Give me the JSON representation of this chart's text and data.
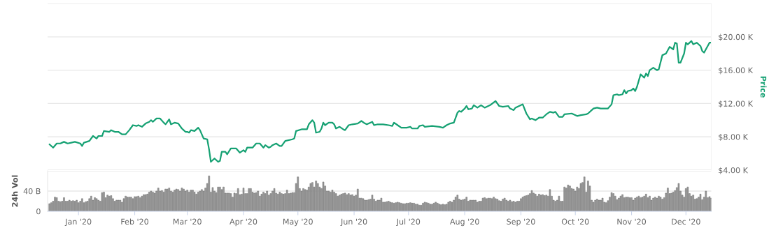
{
  "chart_data": [
    {
      "type": "line",
      "y2label": "Price",
      "tick_labels": "y",
      "grid": "y",
      "xlim": [
        "2019-12-15",
        "2020-12-15"
      ],
      "y2lim": [
        4000,
        24000
      ],
      "y2ticks": [
        {
          "value": 4000,
          "label": "$4.00 K"
        },
        {
          "value": 8000,
          "label": "$8.00 K"
        },
        {
          "value": 12000,
          "label": "$12.00 K"
        },
        {
          "value": 16000,
          "label": "$16.00 K"
        },
        {
          "value": 20000,
          "label": "$20.00 K"
        },
        {
          "value": 24000,
          "label": null
        }
      ],
      "series": [
        {
          "color": "#16a173",
          "axis": "y2",
          "x": [
            "2019-12-16",
            "2019-12-18",
            "2019-12-20",
            "2019-12-22",
            "2019-12-24",
            "2019-12-26",
            "2019-12-28",
            "2019-12-30",
            "2020-01-02",
            "2020-01-03",
            "2020-01-04",
            "2020-01-07",
            "2020-01-09",
            "2020-01-11",
            "2020-01-12",
            "2020-01-14",
            "2020-01-15",
            "2020-01-18",
            "2020-01-19",
            "2020-01-21",
            "2020-01-23",
            "2020-01-25",
            "2020-01-27",
            "2020-01-29",
            "2020-01-31",
            "2020-02-02",
            "2020-02-03",
            "2020-02-05",
            "2020-02-07",
            "2020-02-09",
            "2020-02-10",
            "2020-02-11",
            "2020-02-13",
            "2020-02-15",
            "2020-02-17",
            "2020-02-18",
            "2020-02-20",
            "2020-02-21",
            "2020-02-23",
            "2020-02-25",
            "2020-02-27",
            "2020-02-28",
            "2020-02-29",
            "2020-03-01",
            "2020-03-02",
            "2020-03-03",
            "2020-03-05",
            "2020-03-07",
            "2020-03-08",
            "2020-03-10",
            "2020-03-12",
            "2020-03-13",
            "2020-03-14",
            "2020-03-16",
            "2020-03-18",
            "2020-03-19",
            "2020-03-20",
            "2020-03-22",
            "2020-03-23",
            "2020-03-25",
            "2020-03-28",
            "2020-03-30",
            "2020-04-01",
            "2020-04-02",
            "2020-04-03",
            "2020-04-06",
            "2020-04-08",
            "2020-04-10",
            "2020-04-12",
            "2020-04-13",
            "2020-04-15",
            "2020-04-16",
            "2020-04-17",
            "2020-04-19",
            "2020-04-21",
            "2020-04-22",
            "2020-04-24",
            "2020-04-28",
            "2020-04-29",
            "2020-04-30",
            "2020-05-03",
            "2020-05-06",
            "2020-05-07",
            "2020-05-09",
            "2020-05-10",
            "2020-05-11",
            "2020-05-13",
            "2020-05-14",
            "2020-05-15",
            "2020-05-16",
            "2020-05-18",
            "2020-05-20",
            "2020-05-21",
            "2020-05-22",
            "2020-05-24",
            "2020-05-26",
            "2020-05-27",
            "2020-05-29",
            "2020-05-31",
            "2020-06-03",
            "2020-06-05",
            "2020-06-07",
            "2020-06-08",
            "2020-06-11",
            "2020-06-12",
            "2020-06-14",
            "2020-06-17",
            "2020-06-20",
            "2020-06-22",
            "2020-06-23",
            "2020-06-25",
            "2020-06-27",
            "2020-06-30",
            "2020-07-02",
            "2020-07-03",
            "2020-07-06",
            "2020-07-07",
            "2020-07-09",
            "2020-07-10",
            "2020-07-14",
            "2020-07-18",
            "2020-07-20",
            "2020-07-22",
            "2020-07-24",
            "2020-07-26",
            "2020-07-28",
            "2020-07-29",
            "2020-07-30",
            "2020-08-01",
            "2020-08-02",
            "2020-08-03",
            "2020-08-05",
            "2020-08-06",
            "2020-08-08",
            "2020-08-10",
            "2020-08-12",
            "2020-08-15",
            "2020-08-18",
            "2020-08-20",
            "2020-08-22",
            "2020-08-25",
            "2020-08-26",
            "2020-08-28",
            "2020-08-29",
            "2020-09-02",
            "2020-09-04",
            "2020-09-06",
            "2020-09-07",
            "2020-09-09",
            "2020-09-11",
            "2020-09-13",
            "2020-09-15",
            "2020-09-17",
            "2020-09-19",
            "2020-09-20",
            "2020-09-22",
            "2020-09-24",
            "2020-09-25",
            "2020-09-29",
            "2020-10-02",
            "2020-10-04",
            "2020-10-07",
            "2020-10-08",
            "2020-10-11",
            "2020-10-13",
            "2020-10-15",
            "2020-10-17",
            "2020-10-19",
            "2020-10-21",
            "2020-10-22",
            "2020-10-24",
            "2020-10-25",
            "2020-10-27",
            "2020-10-28",
            "2020-10-29",
            "2020-10-30",
            "2020-11-01",
            "2020-11-02",
            "2020-11-03",
            "2020-11-04",
            "2020-11-06",
            "2020-11-08",
            "2020-11-09",
            "2020-11-10",
            "2020-11-11",
            "2020-11-13",
            "2020-11-15",
            "2020-11-16",
            "2020-11-18",
            "2020-11-20",
            "2020-11-22",
            "2020-11-24",
            "2020-11-25",
            "2020-11-26",
            "2020-11-27",
            "2020-11-28",
            "2020-11-30",
            "2020-12-01",
            "2020-12-02",
            "2020-12-04",
            "2020-12-05",
            "2020-12-07",
            "2020-12-09",
            "2020-12-10",
            "2020-12-11",
            "2020-12-14",
            "2020-12-15"
          ],
          "values": [
            7100,
            6700,
            7200,
            7200,
            7400,
            7200,
            7300,
            7400,
            7200,
            6900,
            7300,
            7500,
            8100,
            7800,
            8100,
            8100,
            8700,
            8600,
            8800,
            8600,
            8600,
            8300,
            8300,
            8800,
            9400,
            9300,
            9400,
            9200,
            9600,
            9800,
            10000,
            9800,
            10200,
            10200,
            9700,
            9500,
            10100,
            9500,
            9700,
            9600,
            9000,
            8800,
            8600,
            8600,
            8500,
            8800,
            8700,
            9100,
            8800,
            7800,
            7700,
            6500,
            5000,
            5400,
            5000,
            5100,
            6200,
            6200,
            5900,
            6600,
            6600,
            6100,
            6400,
            6200,
            6700,
            6700,
            7200,
            7200,
            6700,
            7000,
            6700,
            6800,
            7000,
            7200,
            6900,
            6900,
            7500,
            7700,
            7800,
            8700,
            8900,
            8900,
            9500,
            10000,
            9700,
            8500,
            8600,
            9000,
            9700,
            9400,
            9700,
            9700,
            9500,
            9000,
            9200,
            8900,
            8800,
            9400,
            9500,
            9600,
            9900,
            9600,
            9500,
            9800,
            9400,
            9500,
            9500,
            9400,
            9300,
            9700,
            9400,
            9100,
            9100,
            9200,
            9000,
            9000,
            9300,
            9400,
            9200,
            9300,
            9200,
            9100,
            9400,
            9600,
            9700,
            10900,
            11100,
            11000,
            11400,
            11700,
            11300,
            11400,
            11800,
            11500,
            11800,
            11500,
            11800,
            12300,
            11700,
            11600,
            11700,
            11400,
            11200,
            11500,
            11900,
            10800,
            10100,
            10200,
            10000,
            10300,
            10300,
            10700,
            11000,
            10900,
            11000,
            10400,
            10400,
            10700,
            10800,
            10500,
            10600,
            10700,
            10800,
            11400,
            11500,
            11400,
            11400,
            11400,
            11900,
            13000,
            13100,
            13000,
            13100,
            13600,
            13200,
            13500,
            13600,
            13800,
            13500,
            14000,
            15500,
            15100,
            15600,
            15300,
            16000,
            16300,
            16000,
            16100,
            17800,
            18000,
            18800,
            18500,
            19300,
            19200,
            16900,
            16900,
            18000,
            19300,
            19100,
            19500,
            19100,
            19300,
            18900,
            18300,
            18100,
            19300,
            19300
          ]
        }
      ]
    },
    {
      "type": "bar",
      "ylabel": "24h Vol",
      "grid": "y",
      "xlim": [
        "2019-12-15",
        "2020-12-15"
      ],
      "xticks": [
        {
          "value": "2020-01-01",
          "label": "Jan '20"
        },
        {
          "value": "2020-02-01",
          "label": "Feb '20"
        },
        {
          "value": "2020-03-01",
          "label": "Mar '20"
        },
        {
          "value": "2020-04-01",
          "label": "Apr '20"
        },
        {
          "value": "2020-05-01",
          "label": "May '20"
        },
        {
          "value": "2020-06-01",
          "label": "Jun '20"
        },
        {
          "value": "2020-07-01",
          "label": "Jul '20"
        },
        {
          "value": "2020-08-01",
          "label": "Aug '20"
        },
        {
          "value": "2020-09-01",
          "label": "Sep '20"
        },
        {
          "value": "2020-10-01",
          "label": "Oct '20"
        },
        {
          "value": "2020-11-01",
          "label": "Nov '20"
        },
        {
          "value": "2020-12-01",
          "label": "Dec '20"
        }
      ],
      "ylim": [
        0,
        80
      ],
      "yticks": [
        0,
        {
          "value": 40,
          "label": "40 B"
        },
        {
          "value": 80,
          "label": null
        }
      ],
      "series": [
        {
          "color": "#999999",
          "x": [
            "2019-12-16",
            "2019-12-17",
            "2019-12-18",
            "2019-12-19",
            "2019-12-20",
            "2019-12-21",
            "2019-12-22",
            "2019-12-23",
            "2019-12-24",
            "2019-12-25",
            "2019-12-26",
            "2019-12-27",
            "2019-12-28",
            "2019-12-29",
            "2019-12-30",
            "2019-12-31",
            "2020-01-01",
            "2020-01-02",
            "2020-01-03",
            "2020-01-04",
            "2020-01-05",
            "2020-01-06",
            "2020-01-07",
            "2020-01-08",
            "2020-01-09",
            "2020-01-10",
            "2020-01-11",
            "2020-01-12",
            "2020-01-13",
            "2020-01-14",
            "2020-01-15",
            "2020-01-16",
            "2020-01-17",
            "2020-01-18",
            "2020-01-19",
            "2020-01-20",
            "2020-01-21",
            "2020-01-22",
            "2020-01-23",
            "2020-01-24",
            "2020-01-25",
            "2020-01-26",
            "2020-01-27",
            "2020-01-28",
            "2020-01-29",
            "2020-01-30",
            "2020-01-31",
            "2020-02-01",
            "2020-02-02",
            "2020-02-03",
            "2020-02-04",
            "2020-02-05",
            "2020-02-06",
            "2020-02-07",
            "2020-02-08",
            "2020-02-09",
            "2020-02-10",
            "2020-02-11",
            "2020-02-12",
            "2020-02-13",
            "2020-02-14",
            "2020-02-15",
            "2020-02-16",
            "2020-02-17",
            "2020-02-18",
            "2020-02-19",
            "2020-02-20",
            "2020-02-21",
            "2020-02-22",
            "2020-02-23",
            "2020-02-24",
            "2020-02-25",
            "2020-02-26",
            "2020-02-27",
            "2020-02-28",
            "2020-02-29",
            "2020-03-01",
            "2020-03-02",
            "2020-03-03",
            "2020-03-04",
            "2020-03-05",
            "2020-03-06",
            "2020-03-07",
            "2020-03-08",
            "2020-03-09",
            "2020-03-10",
            "2020-03-11",
            "2020-03-12",
            "2020-03-13",
            "2020-03-14",
            "2020-03-15",
            "2020-03-16",
            "2020-03-17",
            "2020-03-18",
            "2020-03-19",
            "2020-03-20",
            "2020-03-21",
            "2020-03-22",
            "2020-03-23",
            "2020-03-24",
            "2020-03-25",
            "2020-03-26",
            "2020-03-27",
            "2020-03-28",
            "2020-03-29",
            "2020-03-30",
            "2020-03-31",
            "2020-04-01",
            "2020-04-02",
            "2020-04-03",
            "2020-04-04",
            "2020-04-05",
            "2020-04-06",
            "2020-04-07",
            "2020-04-08",
            "2020-04-09",
            "2020-04-10",
            "2020-04-11",
            "2020-04-12",
            "2020-04-13",
            "2020-04-14",
            "2020-04-15",
            "2020-04-16",
            "2020-04-17",
            "2020-04-18",
            "2020-04-19",
            "2020-04-20",
            "2020-04-21",
            "2020-04-22",
            "2020-04-23",
            "2020-04-24",
            "2020-04-25",
            "2020-04-26",
            "2020-04-27",
            "2020-04-28",
            "2020-04-29",
            "2020-04-30",
            "2020-05-01",
            "2020-05-02",
            "2020-05-03",
            "2020-05-04",
            "2020-05-05",
            "2020-05-06",
            "2020-05-07",
            "2020-05-08",
            "2020-05-09",
            "2020-05-10",
            "2020-05-11",
            "2020-05-12",
            "2020-05-13",
            "2020-05-14",
            "2020-05-15",
            "2020-05-16",
            "2020-05-17",
            "2020-05-18",
            "2020-05-19",
            "2020-05-20",
            "2020-05-21",
            "2020-05-22",
            "2020-05-23",
            "2020-05-24",
            "2020-05-25",
            "2020-05-26",
            "2020-05-27",
            "2020-05-28",
            "2020-05-29",
            "2020-05-30",
            "2020-05-31",
            "2020-06-01",
            "2020-06-02",
            "2020-06-03",
            "2020-06-04",
            "2020-06-05",
            "2020-06-06",
            "2020-06-07",
            "2020-06-08",
            "2020-06-09",
            "2020-06-10",
            "2020-06-11",
            "2020-06-12",
            "2020-06-13",
            "2020-06-14",
            "2020-06-15",
            "2020-06-16",
            "2020-06-17",
            "2020-06-18",
            "2020-06-19",
            "2020-06-20",
            "2020-06-21",
            "2020-06-22",
            "2020-06-23",
            "2020-06-24",
            "2020-06-25",
            "2020-06-26",
            "2020-06-27",
            "2020-06-28",
            "2020-06-29",
            "2020-06-30",
            "2020-07-01",
            "2020-07-02",
            "2020-07-03",
            "2020-07-04",
            "2020-07-05",
            "2020-07-06",
            "2020-07-07",
            "2020-07-08",
            "2020-07-09",
            "2020-07-10",
            "2020-07-11",
            "2020-07-12",
            "2020-07-13",
            "2020-07-14",
            "2020-07-15",
            "2020-07-16",
            "2020-07-17",
            "2020-07-18",
            "2020-07-19",
            "2020-07-20",
            "2020-07-21",
            "2020-07-22",
            "2020-07-23",
            "2020-07-24",
            "2020-07-25",
            "2020-07-26",
            "2020-07-27",
            "2020-07-28",
            "2020-07-29",
            "2020-07-30",
            "2020-07-31",
            "2020-08-01",
            "2020-08-02",
            "2020-08-03",
            "2020-08-04",
            "2020-08-05",
            "2020-08-06",
            "2020-08-07",
            "2020-08-08",
            "2020-08-09",
            "2020-08-10",
            "2020-08-11",
            "2020-08-12",
            "2020-08-13",
            "2020-08-14",
            "2020-08-15",
            "2020-08-16",
            "2020-08-17",
            "2020-08-18",
            "2020-08-19",
            "2020-08-20",
            "2020-08-21",
            "2020-08-22",
            "2020-08-23",
            "2020-08-24",
            "2020-08-25",
            "2020-08-26",
            "2020-08-27",
            "2020-08-28",
            "2020-08-29",
            "2020-08-30",
            "2020-08-31",
            "2020-09-01",
            "2020-09-02",
            "2020-09-03",
            "2020-09-04",
            "2020-09-05",
            "2020-09-06",
            "2020-09-07",
            "2020-09-08",
            "2020-09-09",
            "2020-09-10",
            "2020-09-11",
            "2020-09-12",
            "2020-09-13",
            "2020-09-14",
            "2020-09-15",
            "2020-09-16",
            "2020-09-17",
            "2020-09-18",
            "2020-09-19",
            "2020-09-20",
            "2020-09-21",
            "2020-09-22",
            "2020-09-23",
            "2020-09-24",
            "2020-09-25",
            "2020-09-26",
            "2020-09-27",
            "2020-09-28",
            "2020-09-29",
            "2020-09-30",
            "2020-10-01",
            "2020-10-02",
            "2020-10-03",
            "2020-10-04",
            "2020-10-05",
            "2020-10-06",
            "2020-10-07",
            "2020-10-08",
            "2020-10-09",
            "2020-10-10",
            "2020-10-11",
            "2020-10-12",
            "2020-10-13",
            "2020-10-14",
            "2020-10-15",
            "2020-10-16",
            "2020-10-17",
            "2020-10-18",
            "2020-10-19",
            "2020-10-20",
            "2020-10-21",
            "2020-10-22",
            "2020-10-23",
            "2020-10-24",
            "2020-10-25",
            "2020-10-26",
            "2020-10-27",
            "2020-10-28",
            "2020-10-29",
            "2020-10-30",
            "2020-10-31",
            "2020-11-01",
            "2020-11-02",
            "2020-11-03",
            "2020-11-04",
            "2020-11-05",
            "2020-11-06",
            "2020-11-07",
            "2020-11-08",
            "2020-11-09",
            "2020-11-10",
            "2020-11-11",
            "2020-11-12",
            "2020-11-13",
            "2020-11-14",
            "2020-11-15",
            "2020-11-16",
            "2020-11-17",
            "2020-11-18",
            "2020-11-19",
            "2020-11-20",
            "2020-11-21",
            "2020-11-22",
            "2020-11-23",
            "2020-11-24",
            "2020-11-25",
            "2020-11-26",
            "2020-11-27",
            "2020-11-28",
            "2020-11-29",
            "2020-11-30",
            "2020-12-01",
            "2020-12-02",
            "2020-12-03",
            "2020-12-04",
            "2020-12-05",
            "2020-12-06",
            "2020-12-07",
            "2020-12-08",
            "2020-12-09",
            "2020-12-10",
            "2020-12-11",
            "2020-12-12",
            "2020-12-13",
            "2020-12-14",
            "2020-12-15"
          ],
          "values": [
            15,
            17,
            20,
            28,
            27,
            20,
            19,
            20,
            27,
            20,
            20,
            22,
            20,
            21,
            20,
            22,
            17,
            20,
            25,
            17,
            19,
            20,
            25,
            30,
            22,
            27,
            25,
            22,
            20,
            37,
            38,
            27,
            32,
            30,
            31,
            25,
            20,
            22,
            22,
            22,
            18,
            25,
            30,
            28,
            28,
            28,
            25,
            29,
            29,
            30,
            27,
            30,
            33,
            33,
            34,
            38,
            40,
            38,
            36,
            40,
            46,
            40,
            41,
            38,
            44,
            44,
            46,
            40,
            38,
            42,
            44,
            43,
            40,
            46,
            44,
            40,
            42,
            38,
            42,
            42,
            38,
            34,
            38,
            40,
            43,
            40,
            46,
            55,
            70,
            38,
            47,
            40,
            37,
            48,
            48,
            43,
            48,
            36,
            36,
            36,
            35,
            28,
            36,
            35,
            45,
            33,
            34,
            46,
            35,
            35,
            45,
            45,
            38,
            36,
            37,
            40,
            30,
            34,
            38,
            35,
            40,
            32,
            35,
            40,
            45,
            36,
            34,
            38,
            35,
            34,
            35,
            42,
            35,
            36,
            37,
            37,
            55,
            68,
            45,
            40,
            45,
            43,
            42,
            48,
            55,
            57,
            48,
            60,
            55,
            48,
            45,
            58,
            50,
            40,
            40,
            38,
            42,
            38,
            35,
            30,
            32,
            34,
            35,
            36,
            33,
            35,
            32,
            33,
            30,
            32,
            44,
            26,
            26,
            25,
            22,
            22,
            23,
            24,
            32,
            24,
            20,
            22,
            22,
            26,
            18,
            18,
            19,
            20,
            18,
            17,
            16,
            17,
            18,
            17,
            16,
            15,
            15,
            16,
            16,
            17,
            16,
            16,
            14,
            14,
            12,
            12,
            16,
            18,
            17,
            16,
            14,
            14,
            16,
            18,
            16,
            14,
            13,
            14,
            13,
            14,
            18,
            20,
            18,
            22,
            28,
            32,
            24,
            22,
            23,
            24,
            28,
            20,
            22,
            22,
            22,
            22,
            18,
            20,
            20,
            26,
            27,
            25,
            26,
            26,
            25,
            28,
            25,
            24,
            21,
            20,
            24,
            26,
            22,
            20,
            22,
            19,
            20,
            18,
            20,
            20,
            25,
            28,
            30,
            31,
            32,
            35,
            41,
            36,
            34,
            30,
            34,
            32,
            33,
            31,
            32,
            30,
            43,
            30,
            22,
            20,
            22,
            30,
            20,
            20,
            48,
            46,
            52,
            50,
            45,
            44,
            40,
            48,
            45,
            55,
            57,
            68,
            38,
            60,
            50,
            22,
            18,
            22,
            24,
            22,
            22,
            26,
            18,
            17,
            21,
            28,
            37,
            35,
            30,
            23,
            26,
            30,
            33,
            27,
            28,
            28,
            27,
            27,
            22,
            26,
            28,
            30,
            27,
            28,
            30,
            34,
            27,
            30,
            22,
            26,
            28,
            26,
            30,
            28,
            24,
            27,
            36,
            46,
            35,
            36,
            38,
            41,
            47,
            55,
            40,
            32,
            28,
            45,
            48,
            35,
            30,
            32,
            24,
            25,
            28,
            34,
            23,
            28,
            40,
            27,
            29,
            26
          ]
        }
      ]
    }
  ]
}
